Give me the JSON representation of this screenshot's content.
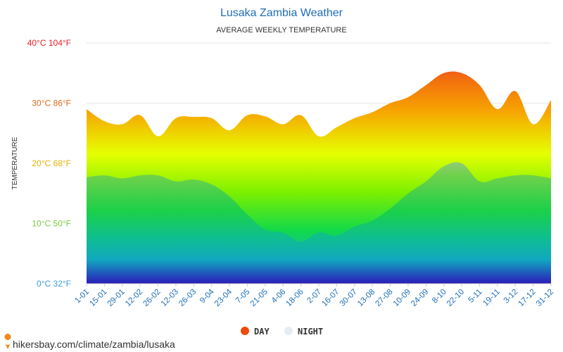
{
  "chart_data": {
    "type": "area",
    "title": "Lusaka Zambia Weather",
    "subtitle": "AVERAGE WEEKLY TEMPERATURE",
    "ylabel": "TEMPERATURE",
    "ylim": [
      0,
      40
    ],
    "y_ticks": [
      {
        "value": 0,
        "label": "0°C 32°F",
        "color": "#3a9bd6"
      },
      {
        "value": 10,
        "label": "10°C 50°F",
        "color": "#7ac943"
      },
      {
        "value": 20,
        "label": "20°C 68°F",
        "color": "#e2b300"
      },
      {
        "value": 30,
        "label": "30°C 86°F",
        "color": "#e06a1a"
      },
      {
        "value": 40,
        "label": "40°C 104°F",
        "color": "#e8202a"
      }
    ],
    "categories": [
      "1-01",
      "15-01",
      "29-01",
      "12-02",
      "26-02",
      "12-03",
      "26-03",
      "9-04",
      "23-04",
      "7-05",
      "21-05",
      "4-06",
      "18-06",
      "2-07",
      "16-07",
      "30-07",
      "13-08",
      "27-08",
      "10-09",
      "24-09",
      "8-10",
      "22-10",
      "5-11",
      "19-11",
      "3-12",
      "17-12",
      "31-12"
    ],
    "series": [
      {
        "name": "DAY",
        "color": "#ee4b0b",
        "values": [
          29.0,
          27.0,
          26.5,
          28.0,
          24.5,
          27.5,
          27.7,
          27.5,
          25.5,
          28.0,
          27.8,
          26.5,
          28.0,
          24.5,
          26.0,
          27.5,
          28.5,
          30.0,
          31.0,
          33.0,
          35.0,
          35.0,
          33.0,
          29.0,
          32.0,
          26.5,
          30.5
        ]
      },
      {
        "name": "NIGHT",
        "color": "#e6ecf4",
        "values": [
          17.7,
          18.0,
          17.5,
          18.0,
          18.0,
          17.0,
          17.3,
          16.5,
          14.5,
          11.5,
          9.0,
          8.5,
          7.0,
          8.5,
          8.0,
          9.5,
          10.5,
          12.5,
          15.0,
          17.0,
          19.5,
          20.0,
          17.0,
          17.5,
          18.0,
          18.0,
          17.5
        ]
      }
    ],
    "legend_position": "bottom-center"
  },
  "footer": {
    "source": "hikersbay.com/climate/zambia/lusaka"
  }
}
